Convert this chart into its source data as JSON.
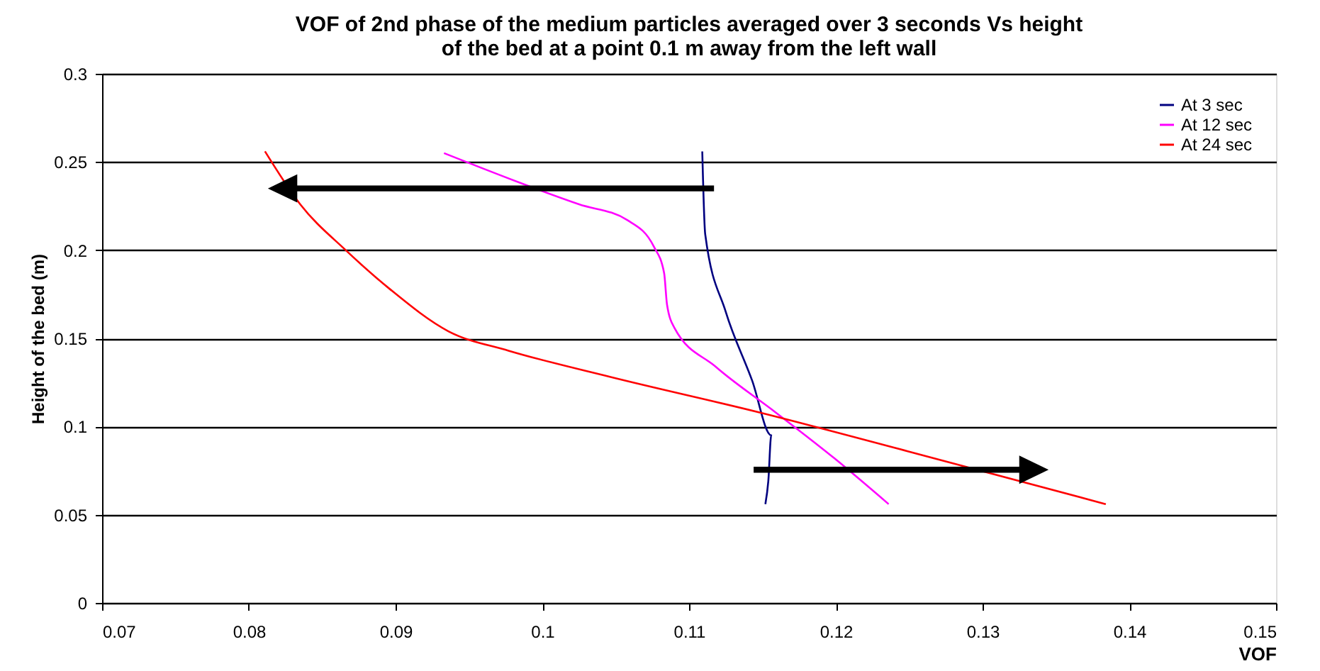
{
  "chart_data": {
    "type": "line",
    "title": [
      "VOF of 2nd phase of the medium particles averaged over 3 seconds Vs height",
      "of the bed at a point 0.1 m away from the left wall"
    ],
    "xlabel": "VOF",
    "ylabel": "Height of the bed (m)",
    "xlim": [
      0.07,
      0.15
    ],
    "xticks": [
      0.07,
      0.08,
      0.09,
      0.1,
      0.11,
      0.12,
      0.13,
      0.14,
      0.15
    ],
    "ylim": [
      0,
      0.3
    ],
    "yticks": [
      0,
      0.05,
      0.1,
      0.15,
      0.2,
      0.25,
      0.3
    ],
    "grid": "y",
    "legend": "top right",
    "marker": "none",
    "line_style": "solid",
    "series": [
      {
        "name": "At 3 sec",
        "color": "#000080",
        "x": [
          0.1109,
          0.1111,
          0.1125,
          0.1143,
          0.1156,
          0.1154,
          0.1152
        ],
        "values": [
          0.256,
          0.209,
          0.165,
          0.126,
          0.095,
          0.069,
          0.056
        ]
      },
      {
        "name": "At 12 sec",
        "color": "#ff00ff",
        "x": [
          0.0933,
          0.1025,
          0.1058,
          0.1076,
          0.1083,
          0.1085,
          0.109,
          0.1118,
          0.1159,
          0.1199,
          0.1236
        ],
        "values": [
          0.255,
          0.226,
          0.217,
          0.202,
          0.187,
          0.169,
          0.156,
          0.134,
          0.108,
          0.082,
          0.056
        ]
      },
      {
        "name": "At 24 sec",
        "color": "#ff0000",
        "x": [
          0.0811,
          0.0835,
          0.0866,
          0.0896,
          0.0936,
          0.0977,
          0.1047,
          0.1148,
          0.1249,
          0.1384
        ],
        "values": [
          0.256,
          0.226,
          0.2,
          0.178,
          0.154,
          0.143,
          0.128,
          0.108,
          0.086,
          0.056
        ]
      }
    ]
  }
}
